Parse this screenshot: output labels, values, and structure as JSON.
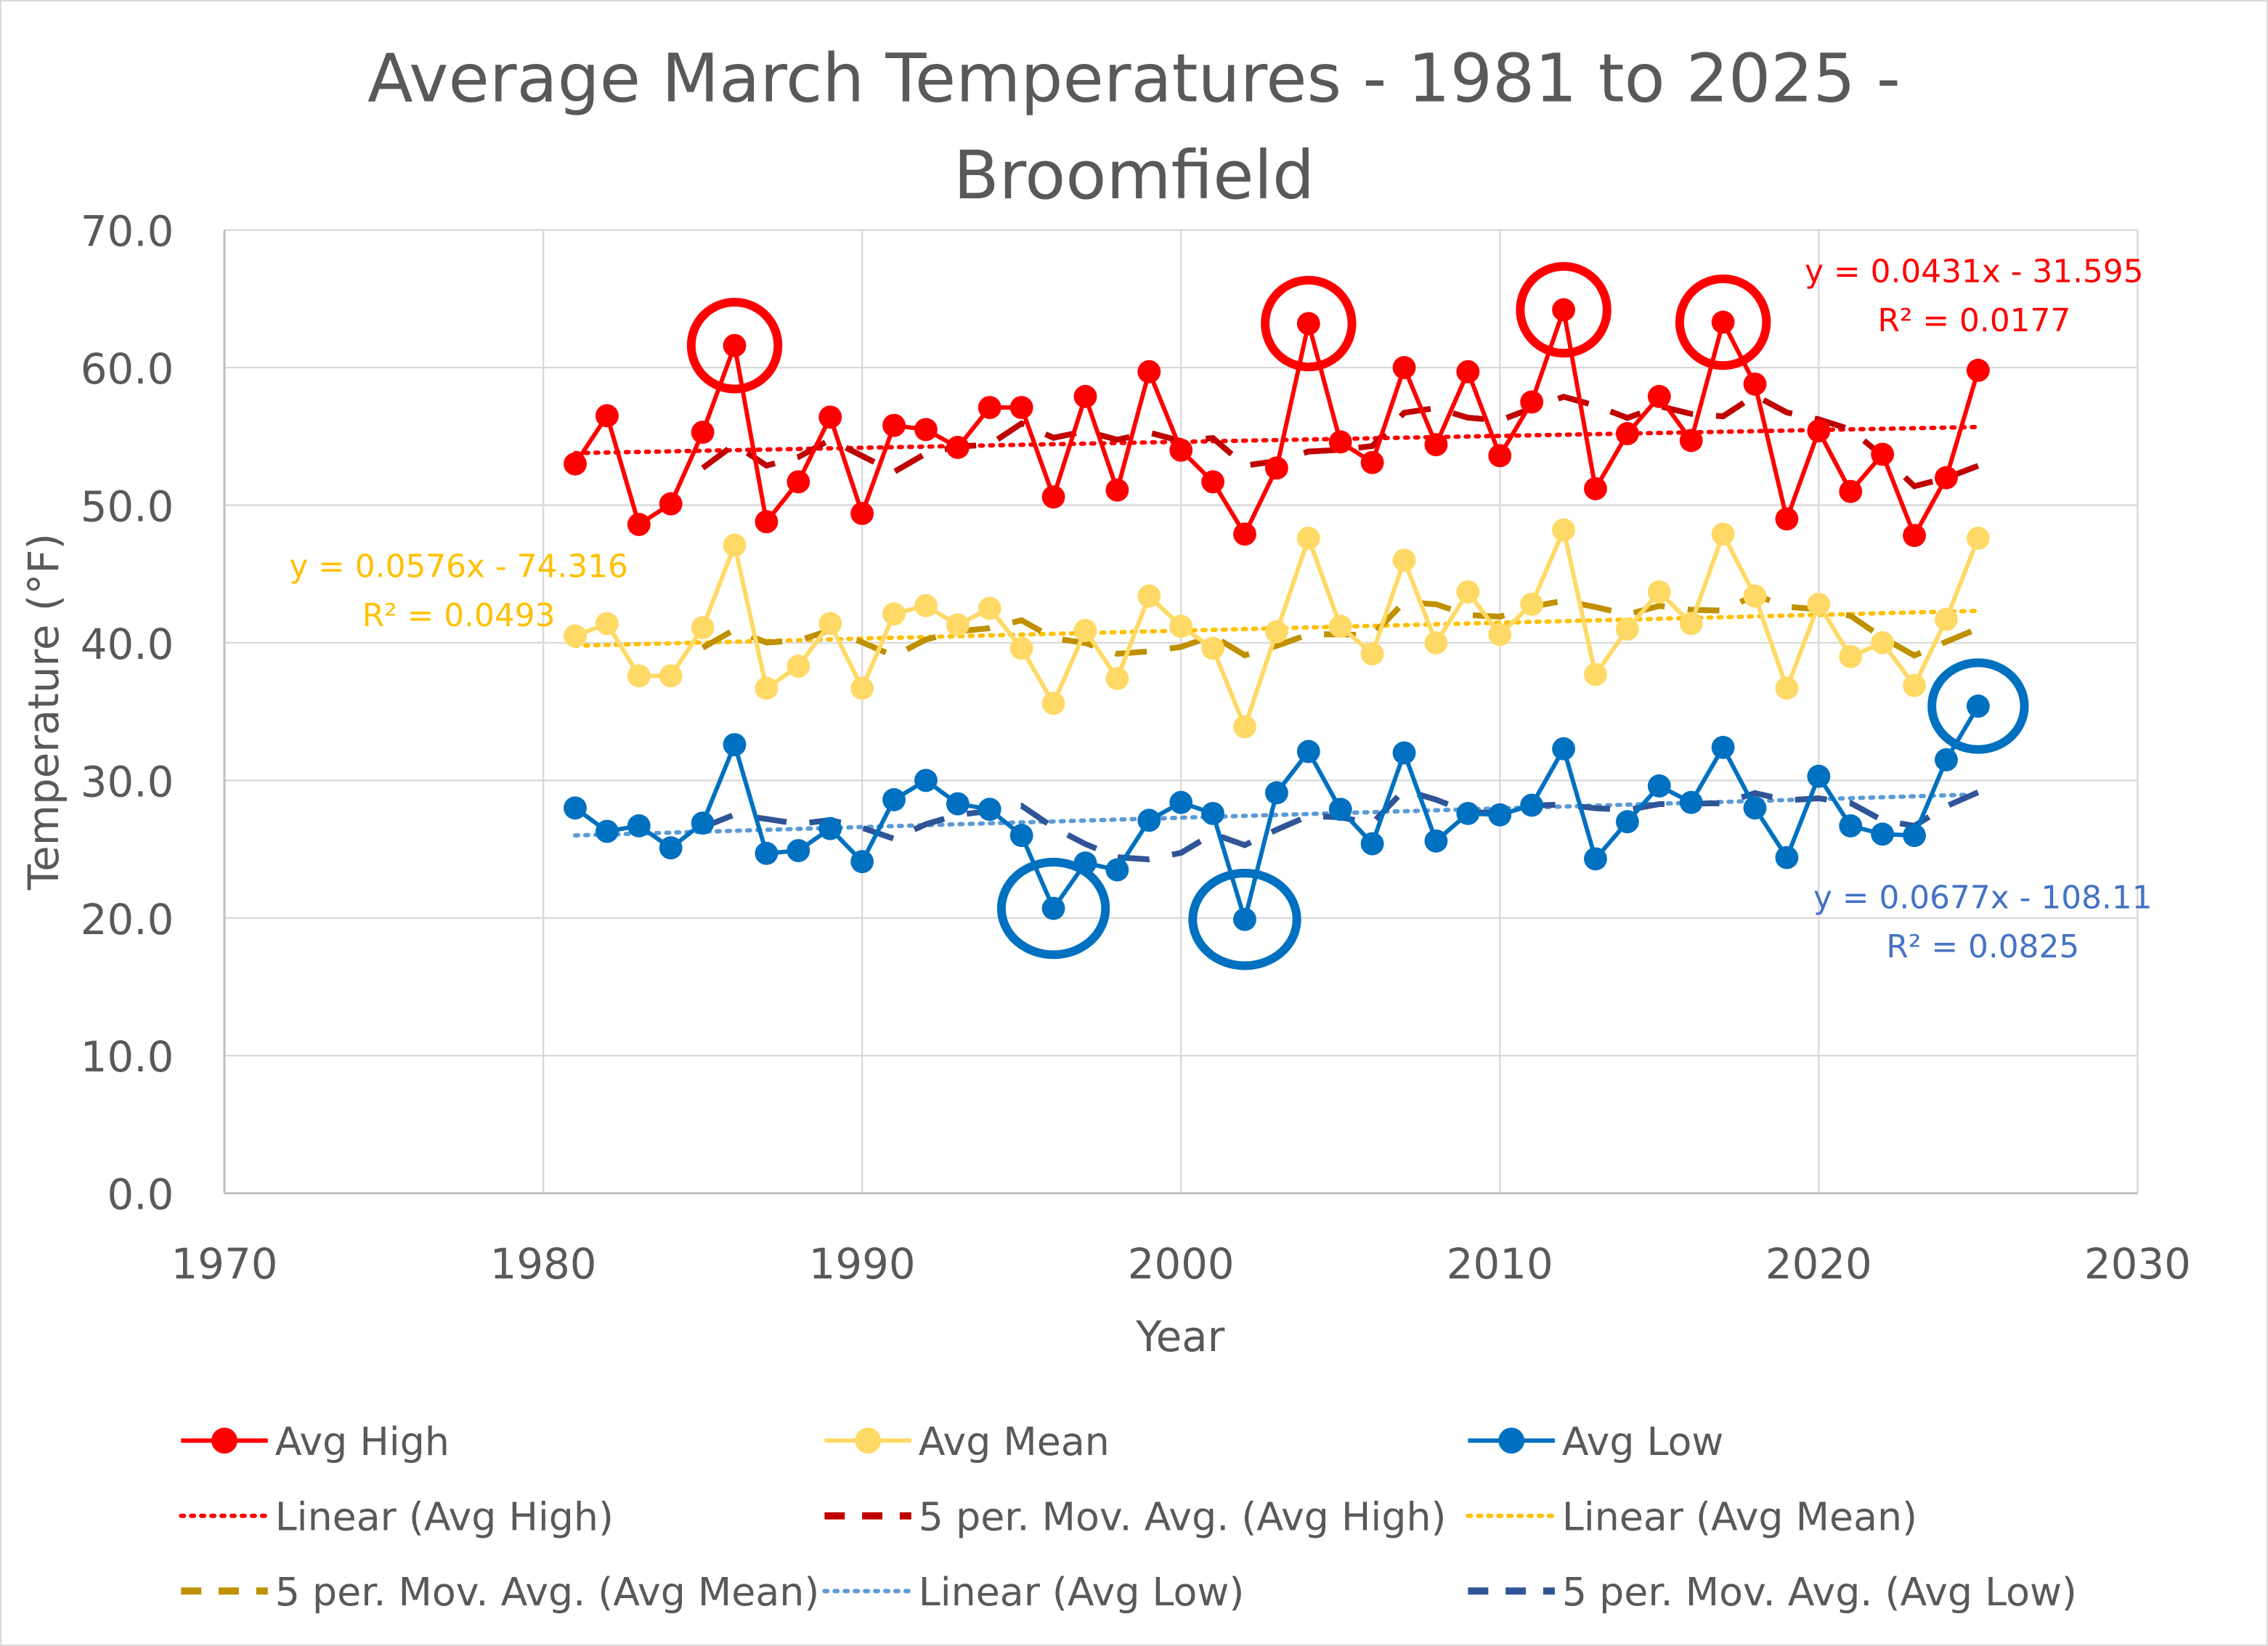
{
  "chart_data": {
    "type": "line",
    "title": "Average March Temperatures - 1981 to 2025 -",
    "title_line2": "Broomfield",
    "xlabel": "Year",
    "ylabel": "Temperature (°F)",
    "xlim": [
      1970,
      2030
    ],
    "ylim": [
      0,
      70
    ],
    "xticks": [
      "1970",
      "1980",
      "1990",
      "2000",
      "2010",
      "2020",
      "2030"
    ],
    "yticks": [
      "0.0",
      "10.0",
      "20.0",
      "30.0",
      "40.0",
      "50.0",
      "60.0",
      "70.0"
    ],
    "grid": true,
    "legend_position": "bottom",
    "x": [
      1981,
      1982,
      1983,
      1984,
      1985,
      1986,
      1987,
      1988,
      1989,
      1990,
      1991,
      1992,
      1993,
      1994,
      1995,
      1996,
      1997,
      1998,
      1999,
      2000,
      2001,
      2002,
      2003,
      2004,
      2005,
      2006,
      2007,
      2008,
      2009,
      2010,
      2011,
      2012,
      2013,
      2014,
      2015,
      2016,
      2017,
      2018,
      2019,
      2020,
      2021,
      2022,
      2023,
      2024,
      2025
    ],
    "series": [
      {
        "name": "Avg High",
        "color": "#ff0000",
        "ma_color": "#c00000",
        "values": [
          53.0,
          56.5,
          48.6,
          50.1,
          55.3,
          61.6,
          48.8,
          51.7,
          56.4,
          49.4,
          55.8,
          55.5,
          54.2,
          57.1,
          57.1,
          50.6,
          57.9,
          51.1,
          59.7,
          54.0,
          51.7,
          47.9,
          52.7,
          63.2,
          54.6,
          53.1,
          60.0,
          54.4,
          59.7,
          53.6,
          57.5,
          64.2,
          51.2,
          55.2,
          57.9,
          54.7,
          63.3,
          58.8,
          49.0,
          55.4,
          51.0,
          53.7,
          47.8,
          52.0,
          59.8
        ],
        "trend": {
          "slope": 0.0431,
          "intercept": -31.595,
          "equation": "y = 0.0431x - 31.595",
          "r2": "R² = 0.0177"
        },
        "highlighted_years": [
          1986,
          2004,
          2012,
          2017
        ]
      },
      {
        "name": "Avg Mean",
        "color": "#ffd966",
        "trend_color": "#ffc000",
        "ma_color": "#bf9000",
        "values": [
          40.5,
          41.4,
          37.6,
          37.6,
          41.1,
          47.1,
          36.7,
          38.3,
          41.4,
          36.7,
          42.1,
          42.7,
          41.3,
          42.5,
          39.6,
          35.6,
          40.9,
          37.4,
          43.4,
          41.2,
          39.6,
          33.9,
          40.8,
          47.6,
          41.2,
          39.2,
          46.0,
          40.0,
          43.7,
          40.6,
          42.8,
          48.2,
          37.7,
          41.0,
          43.7,
          41.4,
          47.9,
          43.4,
          36.7,
          42.8,
          39.0,
          40.0,
          36.9,
          41.7,
          47.6
        ],
        "trend": {
          "slope": 0.0576,
          "intercept": -74.316,
          "equation": "y = 0.0576x - 74.316",
          "r2": "R² = 0.0493"
        },
        "highlighted_years": []
      },
      {
        "name": "Avg Low",
        "color": "#0070c0",
        "trend_color": "#5b9bd5",
        "ma_color": "#2f5597",
        "values": [
          28.0,
          26.3,
          26.7,
          25.1,
          26.9,
          32.6,
          24.7,
          24.9,
          26.5,
          24.1,
          28.6,
          30.0,
          28.3,
          27.9,
          26.0,
          20.7,
          24.0,
          23.5,
          27.1,
          28.4,
          27.6,
          19.9,
          29.1,
          32.1,
          27.9,
          25.4,
          32.0,
          25.6,
          27.6,
          27.5,
          28.2,
          32.3,
          24.3,
          27.0,
          29.6,
          28.4,
          32.4,
          28.0,
          24.4,
          30.3,
          26.7,
          26.1,
          26.0,
          31.5,
          35.4
        ],
        "trend": {
          "slope": 0.0677,
          "intercept": -108.11,
          "equation": "y = 0.0677x - 108.11",
          "r2": "R² = 0.0825"
        },
        "highlighted_years": [
          1996,
          2002,
          2025
        ]
      }
    ],
    "moving_average_period": 5,
    "legend": [
      "Avg High",
      "Avg Mean",
      "Avg Low",
      "Linear (Avg High)",
      "5 per. Mov. Avg. (Avg High)",
      "Linear (Avg Mean)",
      "5 per. Mov. Avg. (Avg Mean)",
      "Linear (Avg Low)",
      "5 per. Mov. Avg. (Avg Low)"
    ]
  }
}
